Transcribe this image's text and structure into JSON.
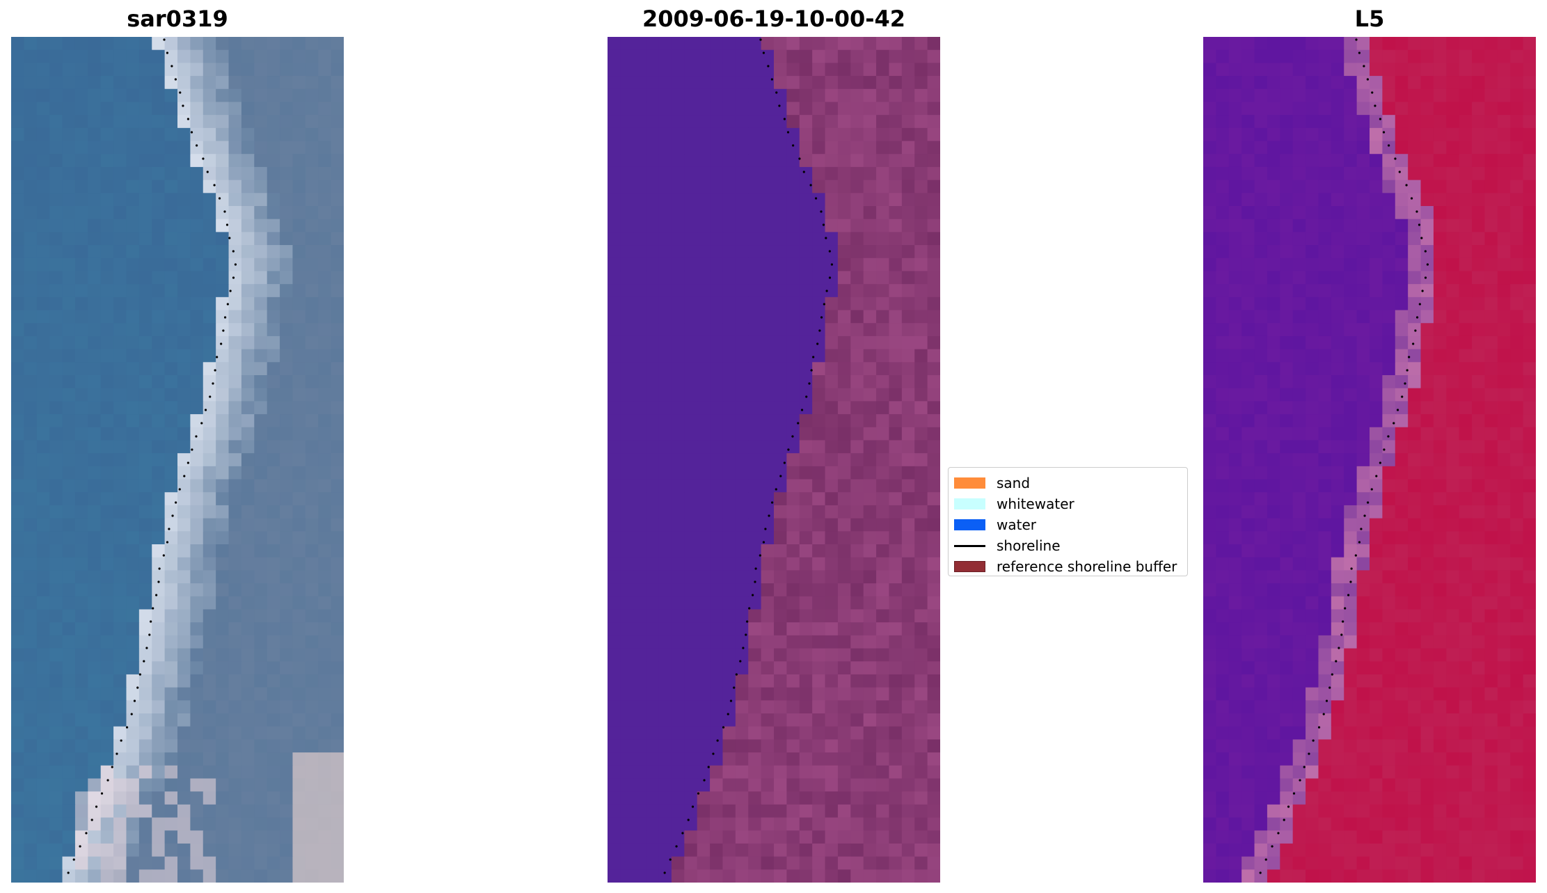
{
  "panels": [
    {
      "title": "sar0319",
      "kind": "rgb"
    },
    {
      "title": "2009-06-19-10-00-42",
      "kind": "classified"
    },
    {
      "title": "L5",
      "kind": "index"
    }
  ],
  "legend": {
    "items": [
      {
        "label": "sand",
        "color": "#ff8c3a",
        "type": "patch"
      },
      {
        "label": "whitewater",
        "color": "#c8ffff",
        "type": "patch"
      },
      {
        "label": "water",
        "color": "#0b5ff5",
        "type": "patch"
      },
      {
        "label": "shoreline",
        "color": "#000000",
        "type": "line"
      },
      {
        "label": "reference shoreline buffer",
        "color": "#922d34",
        "type": "patch"
      }
    ]
  },
  "colors": {
    "water_class": "#54239a",
    "land_class": "#7a3068",
    "index_low": "#6a1aa0",
    "index_high": "#c0124a",
    "rgb_water": "#3a6a98",
    "rgb_land": "#5d7a9c"
  }
}
